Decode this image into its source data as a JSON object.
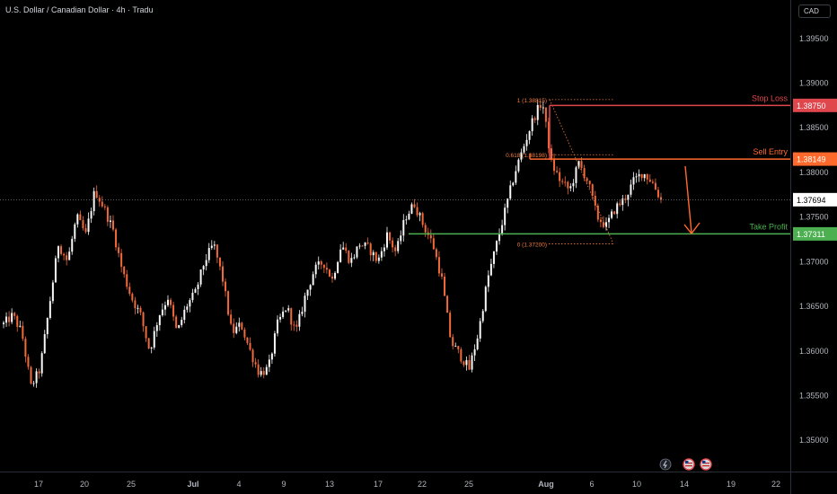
{
  "header": {
    "title": "U.S. Dollar / Canadian Dollar · 4h · Tradu",
    "currency": "CAD"
  },
  "colors": {
    "background": "#000000",
    "up": "#f7f7f7",
    "down": "#f26a3a",
    "stop": "#e0474c",
    "entry": "#ff6a2c",
    "profit": "#4caf50",
    "fib": "#f47b3a",
    "axis_text": "#b2b5be"
  },
  "chart_data": {
    "type": "candlestick",
    "symbol": "USD/CAD",
    "timeframe": "4h",
    "y_ticks": [
      "1.39500",
      "1.39000",
      "1.38500",
      "1.38000",
      "1.37500",
      "1.37000",
      "1.36500",
      "1.36000",
      "1.35500",
      "1.35000"
    ],
    "ylim": [
      1.3465,
      1.3993
    ],
    "x_ticks": [
      "17",
      "20",
      "25",
      "Jul",
      "4",
      "9",
      "13",
      "17",
      "22",
      "25",
      "Aug",
      "6",
      "10",
      "14",
      "19",
      "22"
    ],
    "current_price": "1.37694",
    "levels": [
      {
        "name": "Stop Loss",
        "label": "Stop Loss",
        "price": 1.3875,
        "price_label": "1.38750"
      },
      {
        "name": "Sell Entry",
        "label": "Sell Entry",
        "price": 1.38149,
        "price_label": "1.38149"
      },
      {
        "name": "Take Profit",
        "label": "Take Profit",
        "price": 1.37311,
        "price_label": "1.37311"
      }
    ],
    "fibonacci": [
      {
        "label": "1 (1.38815)",
        "price": 1.38815
      },
      {
        "label": "0.618 (1.38198)",
        "price": 1.38198
      },
      {
        "label": "0 (1.37200)",
        "price": 1.372
      }
    ],
    "path": [
      1.363,
      1.364,
      1.362,
      1.356,
      1.358,
      1.365,
      1.372,
      1.37,
      1.375,
      1.373,
      1.378,
      1.376,
      1.3735,
      1.369,
      1.366,
      1.364,
      1.36,
      1.364,
      1.366,
      1.362,
      1.365,
      1.3665,
      1.37,
      1.372,
      1.368,
      1.362,
      1.363,
      1.36,
      1.3575,
      1.358,
      1.363,
      1.365,
      1.362,
      1.366,
      1.369,
      1.37,
      1.368,
      1.372,
      1.37,
      1.372,
      1.3715,
      1.37,
      1.373,
      1.371,
      1.375,
      1.3765,
      1.374,
      1.372,
      1.368,
      1.361,
      1.3595,
      1.358,
      1.362,
      1.368,
      1.372,
      1.376,
      1.38,
      1.383,
      1.386,
      1.388,
      1.381,
      1.379,
      1.378,
      1.381,
      1.379,
      1.375,
      1.374,
      1.376,
      1.377,
      1.379,
      1.38,
      1.379,
      1.3769
    ]
  },
  "bottom_icons": [
    "lightning-icon",
    "us-flag-icon",
    "us-flag-icon"
  ]
}
